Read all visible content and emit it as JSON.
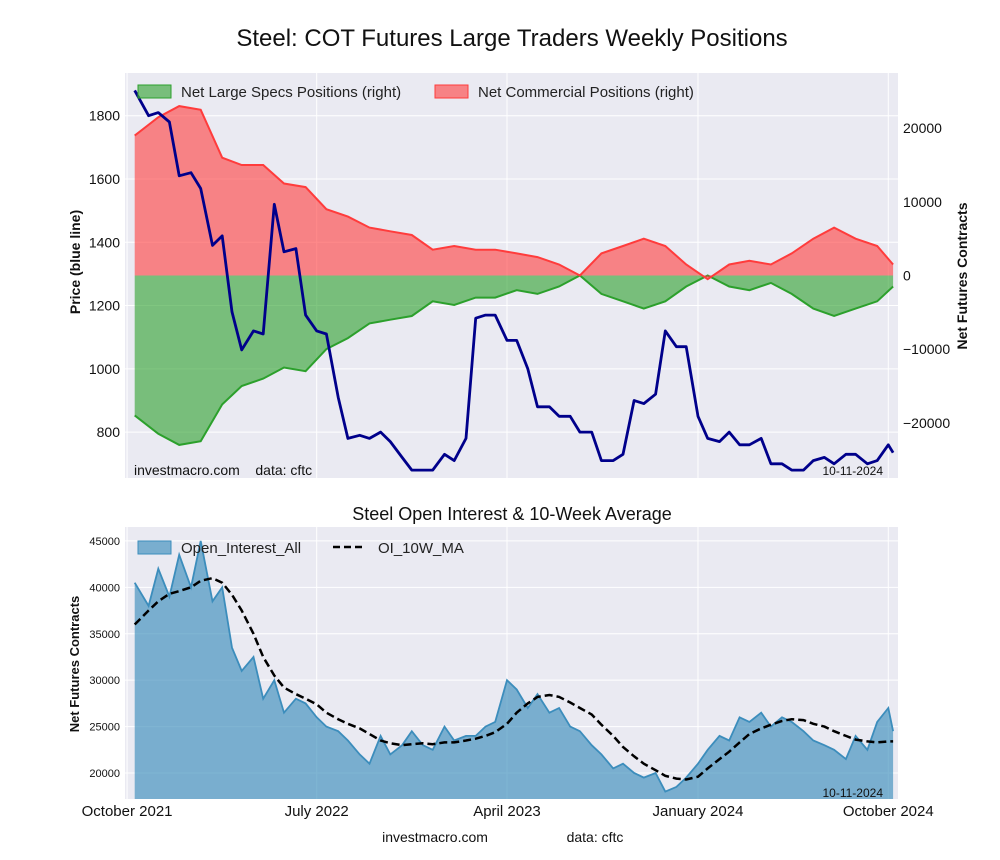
{
  "page": {
    "title": "Steel: COT Futures Large Traders Weekly Positions",
    "footer_site": "investmacro.com",
    "footer_source": "data: cftc"
  },
  "chart_data": [
    {
      "type": "area",
      "title": "Steel: COT Futures Large Traders Weekly Positions",
      "ylabel": "Price (blue line)",
      "ylabel_right": "Net Futures Contracts",
      "ylim": [
        655,
        1935
      ],
      "ylim_right": [
        -27500,
        27500
      ],
      "yticks": [
        800,
        1000,
        1200,
        1400,
        1600,
        1800
      ],
      "yticks_right": [
        -20000,
        -10000,
        0,
        10000,
        20000
      ],
      "xticks": [
        "October 2021",
        "July 2022",
        "April 2023",
        "January 2024",
        "October 2024"
      ],
      "x_range": [
        "2021-09-28",
        "2024-10-15"
      ],
      "grid": true,
      "legend_position": "top-left",
      "annotation_left": "investmacro.com    data: cftc",
      "annotation_right": "10-11-2024",
      "colors": {
        "specs": "#2ca02c",
        "commercial": "#ff3c3c",
        "price": "#00008b",
        "background": "#eaeaf2"
      },
      "series": [
        {
          "name": "Net Large Specs Positions (right)",
          "x": [
            "2021-10-12",
            "2021-11-15",
            "2021-12-15",
            "2022-01-15",
            "2022-02-15",
            "2022-03-15",
            "2022-04-15",
            "2022-05-15",
            "2022-06-15",
            "2022-07-15",
            "2022-08-15",
            "2022-09-15",
            "2022-10-15",
            "2022-11-15",
            "2022-12-15",
            "2023-01-15",
            "2023-02-15",
            "2023-03-15",
            "2023-04-15",
            "2023-05-15",
            "2023-06-15",
            "2023-07-15",
            "2023-08-15",
            "2023-09-15",
            "2023-10-15",
            "2023-11-15",
            "2023-12-15",
            "2024-01-15",
            "2024-02-15",
            "2024-03-15",
            "2024-04-15",
            "2024-05-15",
            "2024-06-15",
            "2024-07-15",
            "2024-08-15",
            "2024-09-15",
            "2024-10-08"
          ],
          "values": [
            -19000,
            -21500,
            -23000,
            -22500,
            -17500,
            -15000,
            -14000,
            -12500,
            -13000,
            -10000,
            -8500,
            -6500,
            -6000,
            -5500,
            -3500,
            -4000,
            -3000,
            -3000,
            -2000,
            -2500,
            -1500,
            0,
            -2500,
            -3500,
            -4500,
            -3500,
            -1500,
            0,
            -1500,
            -2000,
            -1000,
            -2500,
            -4500,
            -5500,
            -4500,
            -3500,
            -1500
          ]
        },
        {
          "name": "Net Commercial Positions (right)",
          "x": [
            "2021-10-12",
            "2021-11-15",
            "2021-12-15",
            "2022-01-15",
            "2022-02-15",
            "2022-03-15",
            "2022-04-15",
            "2022-05-15",
            "2022-06-15",
            "2022-07-15",
            "2022-08-15",
            "2022-09-15",
            "2022-10-15",
            "2022-11-15",
            "2022-12-15",
            "2023-01-15",
            "2023-02-15",
            "2023-03-15",
            "2023-04-15",
            "2023-05-15",
            "2023-06-15",
            "2023-07-15",
            "2023-08-15",
            "2023-09-15",
            "2023-10-15",
            "2023-11-15",
            "2023-12-15",
            "2024-01-15",
            "2024-02-15",
            "2024-03-15",
            "2024-04-15",
            "2024-05-15",
            "2024-06-15",
            "2024-07-15",
            "2024-08-15",
            "2024-09-15",
            "2024-10-08"
          ],
          "values": [
            19000,
            21500,
            23000,
            22500,
            16000,
            15000,
            15000,
            12500,
            12000,
            9000,
            8000,
            6500,
            6000,
            5500,
            3500,
            4000,
            3500,
            3500,
            3000,
            2500,
            1500,
            0,
            3000,
            4000,
            5000,
            4000,
            1500,
            -500,
            1500,
            2000,
            1500,
            3000,
            5000,
            6500,
            5000,
            4000,
            1500
          ]
        },
        {
          "name": "Price",
          "x": [
            "2021-10-12",
            "2021-11-01",
            "2021-11-15",
            "2021-12-01",
            "2021-12-15",
            "2022-01-01",
            "2022-01-15",
            "2022-02-01",
            "2022-02-15",
            "2022-03-01",
            "2022-03-15",
            "2022-04-01",
            "2022-04-15",
            "2022-05-01",
            "2022-05-15",
            "2022-06-01",
            "2022-06-15",
            "2022-07-01",
            "2022-07-15",
            "2022-08-01",
            "2022-08-15",
            "2022-09-01",
            "2022-09-15",
            "2022-10-01",
            "2022-10-15",
            "2022-11-01",
            "2022-11-15",
            "2022-12-01",
            "2022-12-15",
            "2023-01-01",
            "2023-01-15",
            "2023-02-01",
            "2023-02-15",
            "2023-03-01",
            "2023-03-15",
            "2023-04-01",
            "2023-04-15",
            "2023-05-01",
            "2023-05-15",
            "2023-06-01",
            "2023-06-15",
            "2023-07-01",
            "2023-07-15",
            "2023-08-01",
            "2023-08-15",
            "2023-09-01",
            "2023-09-15",
            "2023-10-01",
            "2023-10-15",
            "2023-11-01",
            "2023-11-15",
            "2023-12-01",
            "2023-12-15",
            "2024-01-01",
            "2024-01-15",
            "2024-02-01",
            "2024-02-15",
            "2024-03-01",
            "2024-03-15",
            "2024-04-01",
            "2024-04-15",
            "2024-05-01",
            "2024-05-15",
            "2024-06-01",
            "2024-06-15",
            "2024-07-01",
            "2024-07-15",
            "2024-08-01",
            "2024-08-15",
            "2024-09-01",
            "2024-09-15",
            "2024-10-01",
            "2024-10-08"
          ],
          "values": [
            1880,
            1800,
            1810,
            1780,
            1610,
            1620,
            1570,
            1390,
            1420,
            1180,
            1060,
            1120,
            1110,
            1520,
            1370,
            1380,
            1170,
            1120,
            1110,
            910,
            780,
            790,
            780,
            800,
            770,
            720,
            680,
            680,
            680,
            730,
            710,
            780,
            1160,
            1170,
            1170,
            1090,
            1090,
            1000,
            880,
            880,
            850,
            850,
            800,
            800,
            710,
            710,
            730,
            900,
            890,
            920,
            1120,
            1070,
            1070,
            850,
            780,
            770,
            800,
            760,
            760,
            780,
            700,
            700,
            680,
            680,
            710,
            720,
            700,
            730,
            730,
            700,
            710,
            760,
            735
          ]
        }
      ]
    },
    {
      "type": "area",
      "title": "Steel Open Interest & 10-Week Average",
      "ylabel": "Net Futures Contracts",
      "ylim": [
        17200,
        46500
      ],
      "yticks": [
        20000,
        25000,
        30000,
        35000,
        40000,
        45000
      ],
      "x_range": [
        "2021-09-28",
        "2024-10-15"
      ],
      "grid": true,
      "legend_position": "top-left",
      "annotation_right": "10-11-2024",
      "colors": {
        "open_interest": "#3c8dbc",
        "moving_average": "#000000",
        "background": "#eaeaf2"
      },
      "series": [
        {
          "name": "Open_Interest_All",
          "x": [
            "2021-10-12",
            "2021-11-01",
            "2021-11-15",
            "2021-12-01",
            "2021-12-15",
            "2022-01-01",
            "2022-01-15",
            "2022-02-01",
            "2022-02-15",
            "2022-03-01",
            "2022-03-15",
            "2022-04-01",
            "2022-04-15",
            "2022-05-01",
            "2022-05-15",
            "2022-06-01",
            "2022-06-15",
            "2022-07-01",
            "2022-07-15",
            "2022-08-01",
            "2022-08-15",
            "2022-09-01",
            "2022-09-15",
            "2022-10-01",
            "2022-10-15",
            "2022-11-01",
            "2022-11-15",
            "2022-12-01",
            "2022-12-15",
            "2023-01-01",
            "2023-01-15",
            "2023-02-01",
            "2023-02-15",
            "2023-03-01",
            "2023-03-15",
            "2023-04-01",
            "2023-04-15",
            "2023-05-01",
            "2023-05-15",
            "2023-06-01",
            "2023-06-15",
            "2023-07-01",
            "2023-07-15",
            "2023-08-01",
            "2023-08-15",
            "2023-09-01",
            "2023-09-15",
            "2023-10-01",
            "2023-10-15",
            "2023-11-01",
            "2023-11-15",
            "2023-12-01",
            "2023-12-15",
            "2024-01-01",
            "2024-01-15",
            "2024-02-01",
            "2024-02-15",
            "2024-03-01",
            "2024-03-15",
            "2024-04-01",
            "2024-04-15",
            "2024-05-01",
            "2024-05-15",
            "2024-06-01",
            "2024-06-15",
            "2024-07-01",
            "2024-07-15",
            "2024-08-01",
            "2024-08-15",
            "2024-09-01",
            "2024-09-15",
            "2024-10-01",
            "2024-10-08"
          ],
          "values": [
            40500,
            38000,
            42000,
            39000,
            43500,
            40000,
            45000,
            38500,
            40000,
            33500,
            31000,
            32500,
            28000,
            30000,
            26500,
            28000,
            27500,
            26000,
            25000,
            24500,
            23500,
            22000,
            21000,
            24000,
            22000,
            23000,
            24500,
            23000,
            22500,
            25000,
            23500,
            24000,
            24000,
            25000,
            25500,
            30000,
            29000,
            27000,
            28500,
            26500,
            27000,
            25000,
            24500,
            23000,
            22000,
            20500,
            21000,
            20000,
            19500,
            20000,
            18000,
            18500,
            19500,
            21000,
            22500,
            24000,
            23500,
            26000,
            25500,
            26500,
            25000,
            26000,
            25500,
            24500,
            23500,
            23000,
            22500,
            21500,
            24000,
            22500,
            25500,
            27000,
            24500
          ]
        },
        {
          "name": "OI_10W_MA",
          "x": [
            "2021-10-12",
            "2021-11-01",
            "2021-11-15",
            "2021-12-01",
            "2021-12-15",
            "2022-01-01",
            "2022-01-15",
            "2022-02-01",
            "2022-02-15",
            "2022-03-01",
            "2022-03-15",
            "2022-04-01",
            "2022-04-15",
            "2022-05-01",
            "2022-05-15",
            "2022-06-01",
            "2022-06-15",
            "2022-07-01",
            "2022-07-15",
            "2022-08-01",
            "2022-08-15",
            "2022-09-01",
            "2022-09-15",
            "2022-10-01",
            "2022-10-15",
            "2022-11-01",
            "2022-11-15",
            "2022-12-01",
            "2022-12-15",
            "2023-01-01",
            "2023-01-15",
            "2023-02-01",
            "2023-02-15",
            "2023-03-01",
            "2023-03-15",
            "2023-04-01",
            "2023-04-15",
            "2023-05-01",
            "2023-05-15",
            "2023-06-01",
            "2023-06-15",
            "2023-07-01",
            "2023-07-15",
            "2023-08-01",
            "2023-08-15",
            "2023-09-01",
            "2023-09-15",
            "2023-10-01",
            "2023-10-15",
            "2023-11-01",
            "2023-11-15",
            "2023-12-01",
            "2023-12-15",
            "2024-01-01",
            "2024-01-15",
            "2024-02-01",
            "2024-02-15",
            "2024-03-01",
            "2024-03-15",
            "2024-04-01",
            "2024-04-15",
            "2024-05-01",
            "2024-05-15",
            "2024-06-01",
            "2024-06-15",
            "2024-07-01",
            "2024-07-15",
            "2024-08-01",
            "2024-08-15",
            "2024-09-01",
            "2024-09-15",
            "2024-10-01",
            "2024-10-08"
          ],
          "values": [
            36000,
            37500,
            38500,
            39300,
            39600,
            40000,
            40700,
            41000,
            40500,
            39200,
            37500,
            35000,
            32500,
            30500,
            29200,
            28500,
            28000,
            27400,
            26500,
            25800,
            25300,
            24800,
            24200,
            23500,
            23200,
            23000,
            23100,
            23200,
            23100,
            23300,
            23300,
            23500,
            23700,
            24000,
            24400,
            25300,
            26500,
            27500,
            28200,
            28400,
            28200,
            27600,
            27000,
            26300,
            25200,
            24000,
            22800,
            21800,
            21000,
            20300,
            19700,
            19400,
            19300,
            19600,
            20500,
            21500,
            22300,
            23300,
            24200,
            24800,
            25200,
            25600,
            25800,
            25700,
            25300,
            25000,
            24500,
            24000,
            23600,
            23400,
            23300,
            23400,
            23400
          ]
        }
      ],
      "xticks": [
        "October 2021",
        "July 2022",
        "April 2023",
        "January 2024",
        "October 2024"
      ]
    }
  ]
}
